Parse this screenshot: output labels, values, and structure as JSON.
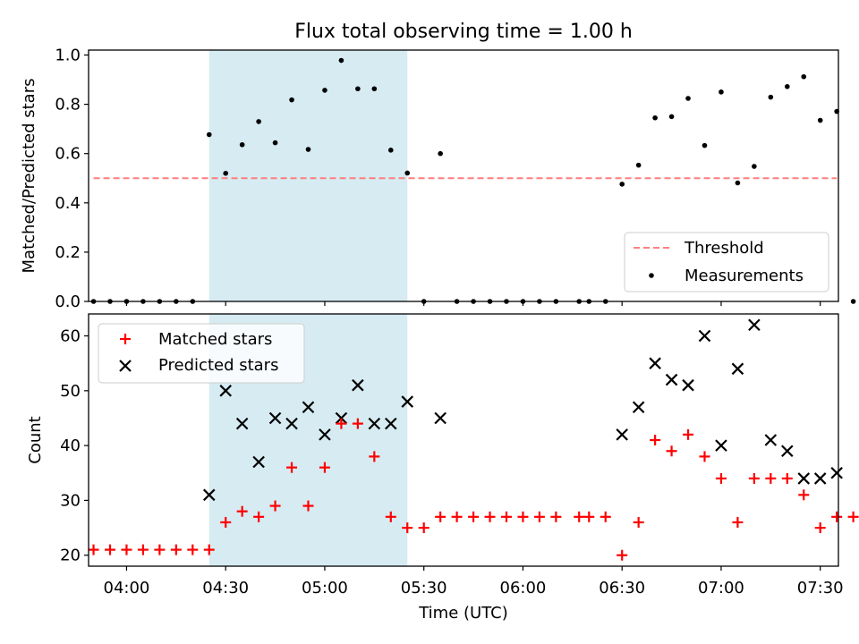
{
  "figure": {
    "title": "Flux total observing time = 1.00 h",
    "xlabel": "Time (UTC)",
    "x_ticks": [
      "04:00",
      "04:30",
      "05:00",
      "05:30",
      "06:00",
      "06:30",
      "07:00",
      "07:30"
    ],
    "x_tick_minutes": [
      240,
      270,
      300,
      330,
      360,
      390,
      420,
      450
    ],
    "xlim_minutes": [
      228.5,
      455.5
    ],
    "shaded_interval": {
      "start": "04:25",
      "end": "05:25",
      "color": "#add8e6"
    }
  },
  "chart_data": [
    {
      "type": "scatter",
      "panel": "top",
      "ylabel": "Matched/Predicted stars",
      "ylim": [
        0,
        1.02
      ],
      "yticks": [
        "0.0",
        "0.2",
        "0.4",
        "0.6",
        "0.8",
        "1.0"
      ],
      "ytick_values": [
        0,
        0.2,
        0.4,
        0.6,
        0.8,
        1.0
      ],
      "legend": {
        "position": "lower right"
      },
      "threshold": {
        "name": "Threshold",
        "y": 0.5,
        "x_range": [
          "03:50",
          "07:35"
        ],
        "color": "#ff7f7f",
        "style": "dashed"
      },
      "series": [
        {
          "name": "Measurements",
          "color": "#000000",
          "marker": "dot",
          "points": [
            [
              "03:50",
              0
            ],
            [
              "03:55",
              0
            ],
            [
              "04:00",
              0
            ],
            [
              "04:05",
              0
            ],
            [
              "04:10",
              0
            ],
            [
              "04:15",
              0
            ],
            [
              "04:20",
              0
            ],
            [
              "04:25",
              0.677
            ],
            [
              "04:30",
              0.52
            ],
            [
              "04:35",
              0.636
            ],
            [
              "04:40",
              0.73
            ],
            [
              "04:45",
              0.644
            ],
            [
              "04:50",
              0.818
            ],
            [
              "04:55",
              0.617
            ],
            [
              "05:00",
              0.857
            ],
            [
              "05:05",
              0.978
            ],
            [
              "05:10",
              0.863
            ],
            [
              "05:15",
              0.863
            ],
            [
              "05:20",
              0.614
            ],
            [
              "05:25",
              0.521
            ],
            [
              "05:30",
              0
            ],
            [
              "05:35",
              0.6
            ],
            [
              "05:40",
              0
            ],
            [
              "05:45",
              0
            ],
            [
              "05:50",
              0
            ],
            [
              "05:55",
              0
            ],
            [
              "06:00",
              0
            ],
            [
              "06:05",
              0
            ],
            [
              "06:10",
              0
            ],
            [
              "06:17",
              0
            ],
            [
              "06:20",
              0
            ],
            [
              "06:25",
              0
            ],
            [
              "06:30",
              0.476
            ],
            [
              "06:35",
              0.553
            ],
            [
              "06:40",
              0.745
            ],
            [
              "06:45",
              0.75
            ],
            [
              "06:50",
              0.824
            ],
            [
              "06:55",
              0.633
            ],
            [
              "07:00",
              0.85
            ],
            [
              "07:05",
              0.481
            ],
            [
              "07:10",
              0.548
            ],
            [
              "07:15",
              0.829
            ],
            [
              "07:20",
              0.872
            ],
            [
              "07:25",
              0.912
            ],
            [
              "07:30",
              0.735
            ],
            [
              "07:35",
              0.771
            ],
            [
              "07:40",
              0
            ]
          ]
        }
      ]
    },
    {
      "type": "scatter",
      "panel": "bottom",
      "ylabel": "Count",
      "ylim": [
        18,
        64
      ],
      "yticks": [
        "20",
        "30",
        "40",
        "50",
        "60"
      ],
      "ytick_values": [
        20,
        30,
        40,
        50,
        60
      ],
      "legend": {
        "position": "upper left"
      },
      "series": [
        {
          "name": "Matched stars",
          "color": "#ff0000",
          "marker": "plus",
          "points": [
            [
              "03:50",
              21
            ],
            [
              "03:55",
              21
            ],
            [
              "04:00",
              21
            ],
            [
              "04:05",
              21
            ],
            [
              "04:10",
              21
            ],
            [
              "04:15",
              21
            ],
            [
              "04:20",
              21
            ],
            [
              "04:25",
              21
            ],
            [
              "04:30",
              26
            ],
            [
              "04:35",
              28
            ],
            [
              "04:40",
              27
            ],
            [
              "04:45",
              29
            ],
            [
              "04:50",
              36
            ],
            [
              "04:55",
              29
            ],
            [
              "05:00",
              36
            ],
            [
              "05:05",
              44
            ],
            [
              "05:10",
              44
            ],
            [
              "05:15",
              38
            ],
            [
              "05:20",
              27
            ],
            [
              "05:25",
              25
            ],
            [
              "05:30",
              25
            ],
            [
              "05:35",
              27
            ],
            [
              "05:40",
              27
            ],
            [
              "05:45",
              27
            ],
            [
              "05:50",
              27
            ],
            [
              "05:55",
              27
            ],
            [
              "06:00",
              27
            ],
            [
              "06:05",
              27
            ],
            [
              "06:10",
              27
            ],
            [
              "06:17",
              27
            ],
            [
              "06:20",
              27
            ],
            [
              "06:25",
              27
            ],
            [
              "06:30",
              20
            ],
            [
              "06:35",
              26
            ],
            [
              "06:40",
              41
            ],
            [
              "06:45",
              39
            ],
            [
              "06:50",
              42
            ],
            [
              "06:55",
              38
            ],
            [
              "07:00",
              34
            ],
            [
              "07:05",
              26
            ],
            [
              "07:10",
              34
            ],
            [
              "07:15",
              34
            ],
            [
              "07:20",
              34
            ],
            [
              "07:25",
              31
            ],
            [
              "07:30",
              25
            ],
            [
              "07:35",
              27
            ],
            [
              "07:40",
              27
            ]
          ]
        },
        {
          "name": "Predicted stars",
          "color": "#000000",
          "marker": "x",
          "points": [
            [
              "04:25",
              31
            ],
            [
              "04:30",
              50
            ],
            [
              "04:35",
              44
            ],
            [
              "04:40",
              37
            ],
            [
              "04:45",
              45
            ],
            [
              "04:50",
              44
            ],
            [
              "04:55",
              47
            ],
            [
              "05:00",
              42
            ],
            [
              "05:05",
              45
            ],
            [
              "05:10",
              51
            ],
            [
              "05:15",
              44
            ],
            [
              "05:20",
              44
            ],
            [
              "05:25",
              48
            ],
            [
              "05:35",
              45
            ],
            [
              "06:30",
              42
            ],
            [
              "06:35",
              47
            ],
            [
              "06:40",
              55
            ],
            [
              "06:45",
              52
            ],
            [
              "06:50",
              51
            ],
            [
              "06:55",
              60
            ],
            [
              "07:00",
              40
            ],
            [
              "07:05",
              54
            ],
            [
              "07:10",
              62
            ],
            [
              "07:15",
              41
            ],
            [
              "07:20",
              39
            ],
            [
              "07:25",
              34
            ],
            [
              "07:30",
              34
            ],
            [
              "07:35",
              35
            ]
          ]
        }
      ]
    }
  ]
}
